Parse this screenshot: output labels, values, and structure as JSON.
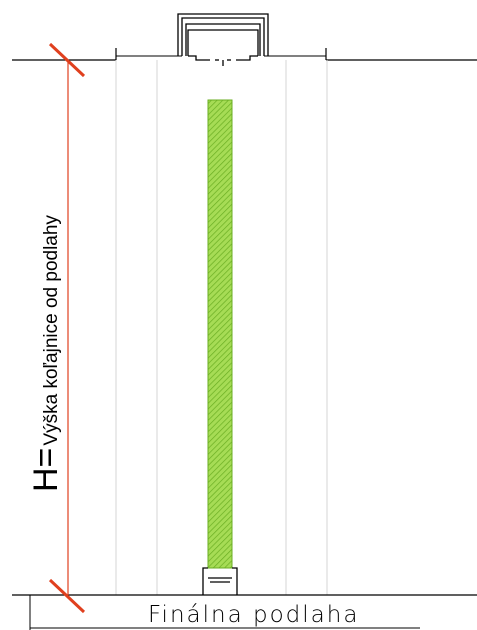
{
  "dimension": {
    "symbol": "H=",
    "label": "Výška koľajnice od podlahy"
  },
  "floor": {
    "label": "Finálna podlaha"
  },
  "colors": {
    "dimension_line": "#e0401e",
    "glass_fill": "#8ad130",
    "glass_hatch": "#5fa31c",
    "panel_line": "#d4d4d4",
    "profile_line": "#000000"
  }
}
